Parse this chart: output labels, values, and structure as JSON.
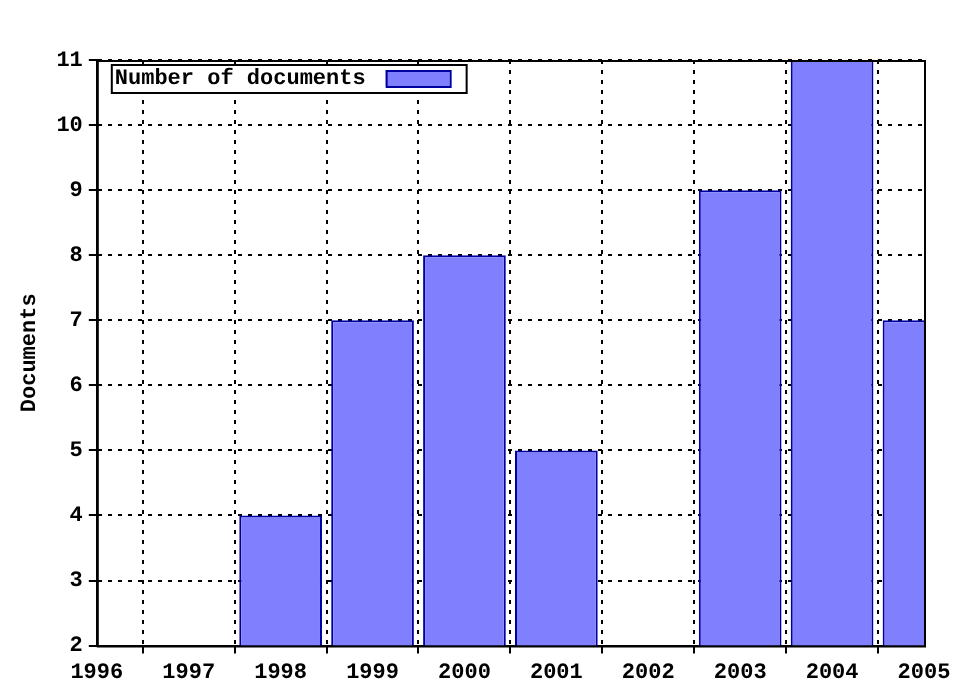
{
  "chart_data": {
    "type": "bar",
    "ylabel": "Documents",
    "x": [
      1998,
      1999,
      2000,
      2001,
      2003,
      2004,
      2005
    ],
    "series": [
      {
        "name": "Number of documents",
        "color": "#8080ff",
        "values": [
          4,
          7,
          8,
          5,
          9,
          11,
          7
        ]
      }
    ],
    "xlim": [
      1996,
      2005
    ],
    "xticks": [
      1996,
      1997,
      1998,
      1999,
      2000,
      2001,
      2002,
      2003,
      2004,
      2005
    ],
    "ylim": [
      2,
      11
    ],
    "yticks": [
      2,
      3,
      4,
      5,
      6,
      7,
      8,
      9,
      10,
      11
    ],
    "grid": true,
    "legend": "top left"
  }
}
